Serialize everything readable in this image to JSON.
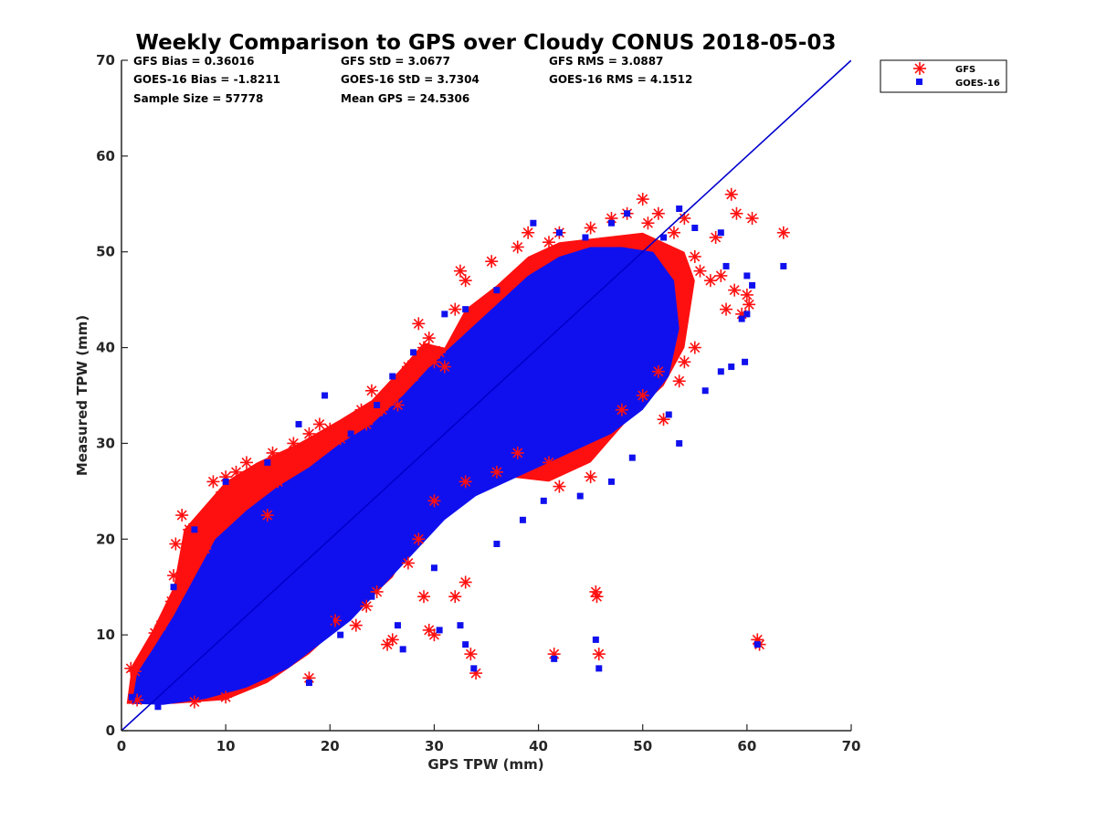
{
  "chart_data": {
    "type": "scatter",
    "title": "Weekly Comparison to GPS over Cloudy CONUS 2018-05-03",
    "xlabel": "GPS TPW (mm)",
    "ylabel": "Measured TPW (mm)",
    "xlim": [
      0,
      70
    ],
    "ylim": [
      0,
      70
    ],
    "xticks": [
      "0",
      "10",
      "20",
      "30",
      "40",
      "50",
      "60",
      "70"
    ],
    "yticks": [
      "0",
      "10",
      "20",
      "30",
      "40",
      "50",
      "60",
      "70"
    ],
    "grid": false,
    "legend_placement": "outside top-right",
    "stats": [
      "GFS Bias = 0.36016",
      "GFS StD = 3.0677",
      "GFS RMS = 3.0887",
      "GOES-16 Bias = -1.8211",
      "GOES-16 StD = 3.7304",
      "GOES-16 RMS = 4.1512",
      "Sample Size = 57778",
      "Mean GPS = 24.5306"
    ],
    "reference_line": {
      "x": [
        0,
        70
      ],
      "y": [
        0,
        70
      ],
      "color": "#0000cc"
    },
    "series": [
      {
        "name": "GFS",
        "color": "#ff1010",
        "marker": "asterisk",
        "points": [
          [
            0.9,
            6.5
          ],
          [
            1.3,
            6.2
          ],
          [
            1.5,
            3.2
          ],
          [
            3.2,
            10.2
          ],
          [
            3.8,
            11.0
          ],
          [
            4.8,
            13.5
          ],
          [
            5.0,
            16.2
          ],
          [
            5.2,
            19.5
          ],
          [
            5.8,
            22.5
          ],
          [
            6.5,
            21.0
          ],
          [
            7.5,
            20.5
          ],
          [
            8.0,
            19.0
          ],
          [
            9.0,
            23.5
          ],
          [
            8.8,
            26.0
          ],
          [
            9.5,
            24.5
          ],
          [
            10.0,
            26.5
          ],
          [
            10.5,
            25.5
          ],
          [
            11.0,
            27.0
          ],
          [
            11.5,
            24.0
          ],
          [
            12.0,
            28.0
          ],
          [
            12.5,
            25.5
          ],
          [
            13.5,
            27.5
          ],
          [
            14.0,
            22.5
          ],
          [
            14.5,
            29.0
          ],
          [
            15.0,
            26.0
          ],
          [
            15.5,
            28.5
          ],
          [
            16.5,
            30.0
          ],
          [
            17.5,
            29.5
          ],
          [
            18.0,
            31.0
          ],
          [
            18.5,
            29.0
          ],
          [
            19.0,
            32.0
          ],
          [
            20.0,
            31.5
          ],
          [
            21.0,
            30.5
          ],
          [
            22.0,
            32.0
          ],
          [
            23.0,
            33.5
          ],
          [
            23.5,
            32.0
          ],
          [
            24.0,
            35.5
          ],
          [
            25.0,
            33.5
          ],
          [
            26.0,
            35.0
          ],
          [
            26.5,
            34.0
          ],
          [
            27.0,
            36.5
          ],
          [
            27.5,
            38.0
          ],
          [
            28.0,
            37.0
          ],
          [
            28.5,
            42.5
          ],
          [
            29.0,
            40.0
          ],
          [
            29.5,
            41.0
          ],
          [
            30.0,
            38.5
          ],
          [
            30.5,
            39.5
          ],
          [
            31.0,
            38.0
          ],
          [
            32.0,
            44.0
          ],
          [
            32.5,
            48.0
          ],
          [
            33.0,
            47.0
          ],
          [
            35.5,
            49.0
          ],
          [
            38.0,
            50.5
          ],
          [
            39.0,
            52.0
          ],
          [
            41.0,
            51.0
          ],
          [
            42.0,
            52.0
          ],
          [
            45.0,
            52.5
          ],
          [
            47.0,
            53.5
          ],
          [
            48.5,
            54.0
          ],
          [
            50.0,
            55.5
          ],
          [
            50.5,
            53.0
          ],
          [
            51.5,
            54.0
          ],
          [
            53.0,
            52.0
          ],
          [
            54.0,
            53.5
          ],
          [
            55.0,
            49.5
          ],
          [
            55.5,
            48.0
          ],
          [
            56.5,
            47.0
          ],
          [
            57.0,
            51.5
          ],
          [
            57.5,
            47.5
          ],
          [
            58.0,
            44.0
          ],
          [
            58.5,
            56.0
          ],
          [
            58.8,
            46.0
          ],
          [
            59.0,
            54.0
          ],
          [
            59.5,
            43.5
          ],
          [
            60.0,
            45.5
          ],
          [
            60.2,
            44.5
          ],
          [
            60.5,
            53.5
          ],
          [
            63.5,
            52.0
          ],
          [
            55.0,
            40.0
          ],
          [
            54.0,
            38.5
          ],
          [
            53.5,
            36.5
          ],
          [
            52.0,
            32.5
          ],
          [
            51.5,
            37.5
          ],
          [
            50.0,
            35.0
          ],
          [
            48.0,
            33.5
          ],
          [
            45.0,
            26.5
          ],
          [
            42.0,
            25.5
          ],
          [
            41.0,
            28.0
          ],
          [
            38.0,
            29.0
          ],
          [
            36.0,
            27.0
          ],
          [
            33.0,
            26.0
          ],
          [
            30.0,
            24.0
          ],
          [
            28.5,
            20.0
          ],
          [
            27.5,
            17.5
          ],
          [
            24.5,
            14.5
          ],
          [
            23.5,
            13.0
          ],
          [
            22.5,
            11.0
          ],
          [
            20.5,
            11.5
          ],
          [
            18.0,
            5.5
          ],
          [
            10.0,
            3.5
          ],
          [
            7.0,
            3.0
          ],
          [
            25.5,
            9.0
          ],
          [
            26.0,
            9.5
          ],
          [
            29.0,
            14.0
          ],
          [
            29.5,
            10.5
          ],
          [
            30.0,
            10.0
          ],
          [
            32.0,
            14.0
          ],
          [
            33.0,
            15.5
          ],
          [
            33.5,
            8.0
          ],
          [
            34.0,
            6.0
          ],
          [
            41.5,
            8.0
          ],
          [
            45.5,
            14.5
          ],
          [
            45.6,
            14.0
          ],
          [
            45.8,
            8.0
          ],
          [
            61.0,
            9.5
          ],
          [
            61.2,
            9.0
          ]
        ]
      },
      {
        "name": "GOES-16",
        "color": "#1010ee",
        "marker": "square",
        "points": [
          [
            1.0,
            3.5
          ],
          [
            2.0,
            5.0
          ],
          [
            3.5,
            2.5
          ],
          [
            5.5,
            3.5
          ],
          [
            8.0,
            4.0
          ],
          [
            12.0,
            6.0
          ],
          [
            15.5,
            7.0
          ],
          [
            18.0,
            5.0
          ],
          [
            21.0,
            10.0
          ],
          [
            24.0,
            14.0
          ],
          [
            26.5,
            11.0
          ],
          [
            27.0,
            8.5
          ],
          [
            30.5,
            10.5
          ],
          [
            32.5,
            11.0
          ],
          [
            33.0,
            9.0
          ],
          [
            33.8,
            6.5
          ],
          [
            41.5,
            7.5
          ],
          [
            45.5,
            9.5
          ],
          [
            45.8,
            6.5
          ],
          [
            61.0,
            9.0
          ],
          [
            36.0,
            19.5
          ],
          [
            38.5,
            22.0
          ],
          [
            40.5,
            24.0
          ],
          [
            44.0,
            24.5
          ],
          [
            47.0,
            26.0
          ],
          [
            49.0,
            28.5
          ],
          [
            53.5,
            30.0
          ],
          [
            52.5,
            33.0
          ],
          [
            56.0,
            35.5
          ],
          [
            57.5,
            37.5
          ],
          [
            58.5,
            38.0
          ],
          [
            59.5,
            43.0
          ],
          [
            60.5,
            46.5
          ],
          [
            63.5,
            48.5
          ],
          [
            58.0,
            48.5
          ],
          [
            60.0,
            43.5
          ],
          [
            57.5,
            52.0
          ],
          [
            55.0,
            52.5
          ],
          [
            53.5,
            54.5
          ],
          [
            52.0,
            51.5
          ],
          [
            48.5,
            54.0
          ],
          [
            47.0,
            53.0
          ],
          [
            44.5,
            51.5
          ],
          [
            42.0,
            52.0
          ],
          [
            39.5,
            53.0
          ],
          [
            36.0,
            46.0
          ],
          [
            33.0,
            44.0
          ],
          [
            31.0,
            43.5
          ],
          [
            28.0,
            39.5
          ],
          [
            26.0,
            37.0
          ],
          [
            24.5,
            34.0
          ],
          [
            22.0,
            31.0
          ],
          [
            19.5,
            35.0
          ],
          [
            17.0,
            32.0
          ],
          [
            14.0,
            28.0
          ],
          [
            10.0,
            26.0
          ],
          [
            7.0,
            21.0
          ],
          [
            5.0,
            15.0
          ],
          [
            60.0,
            47.5
          ],
          [
            59.8,
            38.5
          ],
          [
            30.0,
            17.0
          ],
          [
            20.0,
            11.5
          ]
        ]
      }
    ]
  },
  "legend": {
    "items": [
      {
        "label": "GFS",
        "color": "#ff1010",
        "icon": "asterisk-marker-icon"
      },
      {
        "label": "GOES-16",
        "color": "#1010ee",
        "icon": "square-marker-icon"
      }
    ]
  }
}
